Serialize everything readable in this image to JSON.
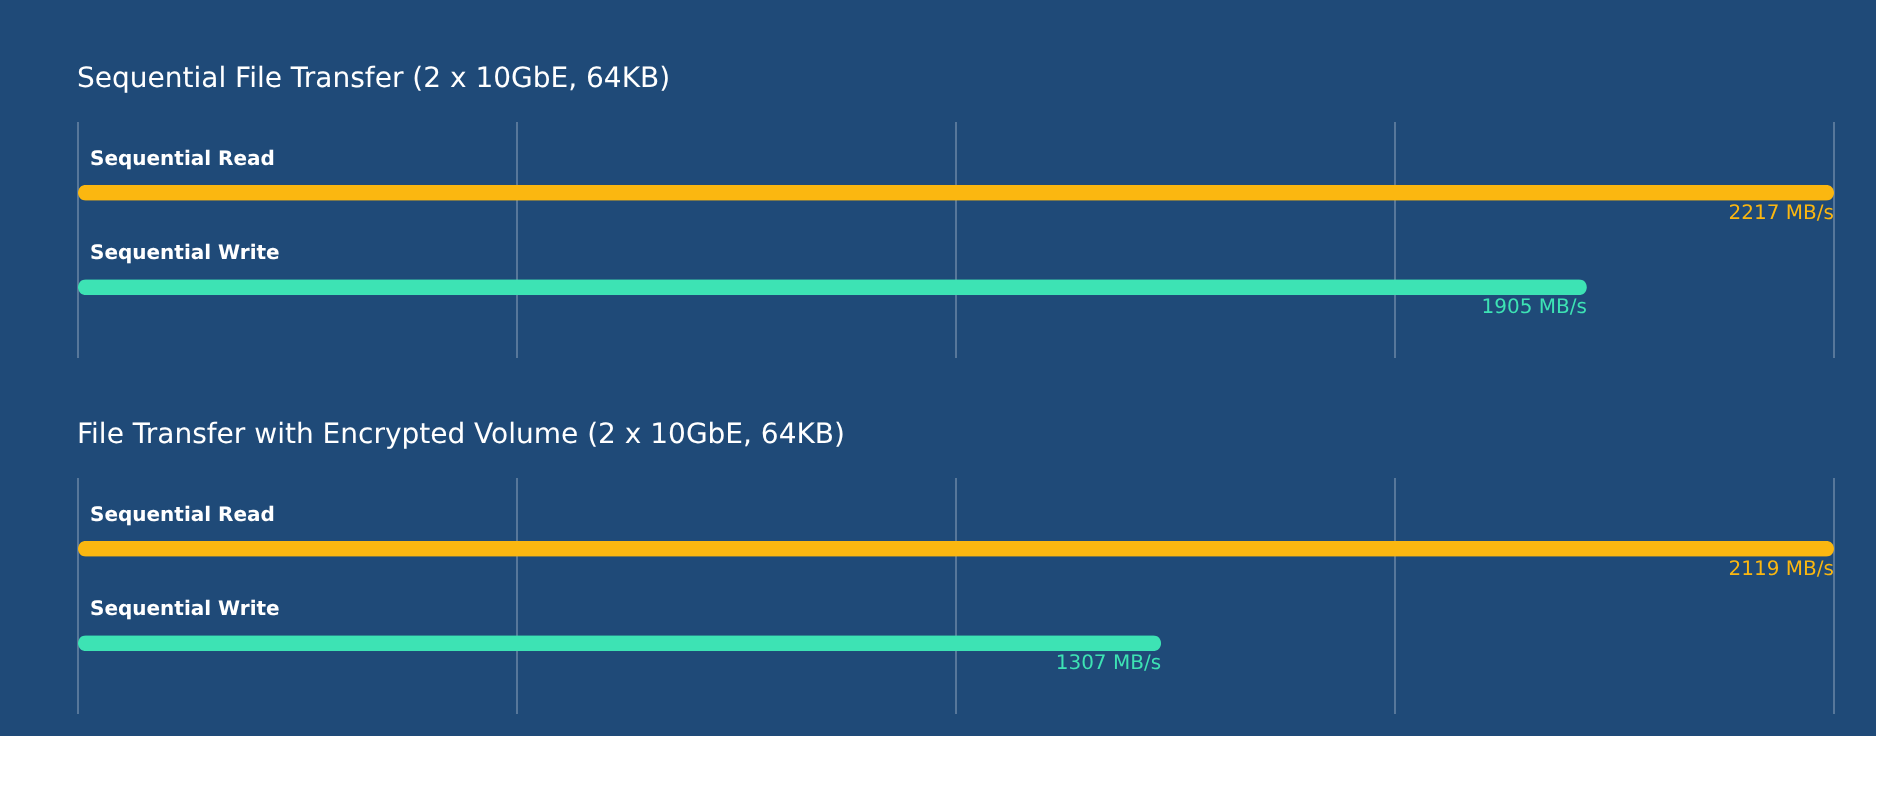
{
  "chart_data": [
    {
      "type": "bar",
      "orientation": "horizontal",
      "title": "Sequential File Transfer (2 x 10GbE, 64KB)",
      "categories": [
        "Sequential Read",
        "Sequential Write"
      ],
      "values": [
        2217,
        1905
      ],
      "value_labels": [
        "2217 MB/s",
        "1905 MB/s"
      ],
      "colors": [
        "#fbb710",
        "#3de3b4"
      ],
      "grid": true
    },
    {
      "type": "bar",
      "orientation": "horizontal",
      "title": "File Transfer with Encrypted Volume (2 x 10GbE, 64KB)",
      "categories": [
        "Sequential Read",
        "Sequential Write"
      ],
      "values": [
        2119,
        1307
      ],
      "value_labels": [
        "2119 MB/s",
        "1307 MB/s"
      ],
      "colors": [
        "#fbb710",
        "#3de3b4"
      ],
      "grid": true
    }
  ]
}
